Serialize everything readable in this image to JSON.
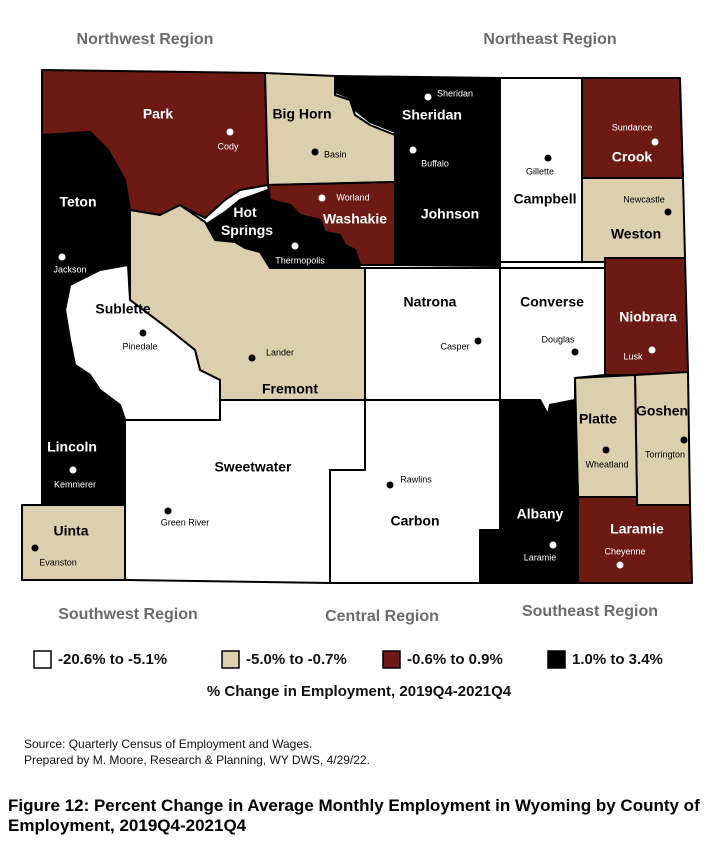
{
  "regions": [
    "Northwest Region",
    "Northeast Region",
    "Southwest Region",
    "Central Region",
    "Southeast Region"
  ],
  "legend": {
    "items": [
      {
        "label": "-20.6% to -5.1%",
        "color": "#ffffff"
      },
      {
        "label": "-5.0% to -0.7%",
        "color": "#dccfae"
      },
      {
        "label": "-0.6% to 0.9%",
        "color": "#6e1a14"
      },
      {
        "label": "1.0% to 3.4%",
        "color": "#000000"
      }
    ],
    "title": "% Change in Employment, 2019Q4-2021Q4"
  },
  "counties": [
    {
      "name": "Park",
      "city": "Cody",
      "category": 2
    },
    {
      "name": "Teton",
      "city": "Jackson",
      "category": 3
    },
    {
      "name": "Big Horn",
      "city": "Basin",
      "category": 1
    },
    {
      "name": "Sheridan",
      "city": "Sheridan",
      "category": 3
    },
    {
      "name": "Campbell",
      "city": "Gillette",
      "category": 0
    },
    {
      "name": "Crook",
      "city": "Sundance",
      "category": 2
    },
    {
      "name": "Weston",
      "city": "Newcastle",
      "category": 1
    },
    {
      "name": "Johnson",
      "city": "Buffalo",
      "category": 3
    },
    {
      "name": "Washakie",
      "city": "Worland",
      "category": 2
    },
    {
      "name": "Hot Springs",
      "city": "Thermopolis",
      "category": 3
    },
    {
      "name": "Fremont",
      "city": "Lander",
      "category": 1
    },
    {
      "name": "Sublette",
      "city": "Pinedale",
      "category": 0
    },
    {
      "name": "Lincoln",
      "city": "Kemmerer",
      "category": 3
    },
    {
      "name": "Uinta",
      "city": "Evanston",
      "category": 1
    },
    {
      "name": "Sweetwater",
      "city": "Green River",
      "category": 0
    },
    {
      "name": "Natrona",
      "city": "Casper",
      "category": 0
    },
    {
      "name": "Carbon",
      "city": "Rawlins",
      "category": 0
    },
    {
      "name": "Converse",
      "city": "Douglas",
      "category": 0
    },
    {
      "name": "Niobrara",
      "city": "Lusk",
      "category": 2
    },
    {
      "name": "Goshen",
      "city": "Torrington",
      "category": 1
    },
    {
      "name": "Platte",
      "city": "Wheatland",
      "category": 1
    },
    {
      "name": "Albany",
      "city": "Laramie",
      "category": 3
    },
    {
      "name": "Laramie",
      "city": "Cheyenne",
      "category": 2
    }
  ],
  "source": [
    "Source: Quarterly Census of Employment and Wages.",
    "Prepared by M. Moore, Research & Planning, WY DWS, 4/29/22."
  ],
  "caption": "Figure 12: Percent Change in Average Monthly Employment in Wyoming by County of Employment, 2019Q4-2021Q4"
}
